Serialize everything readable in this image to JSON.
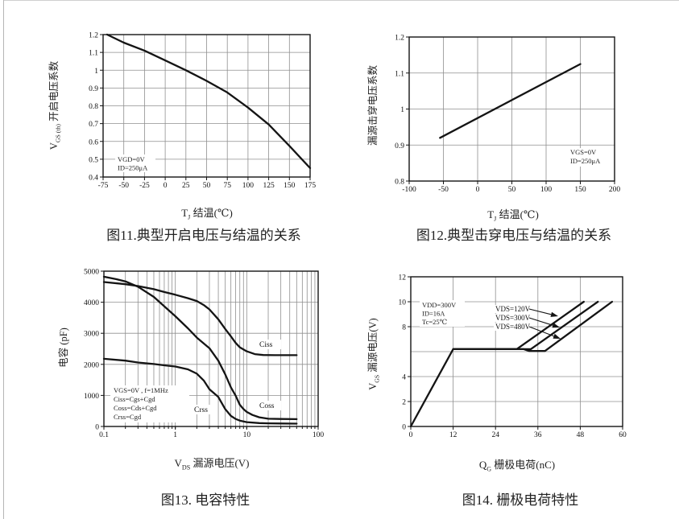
{
  "page": {
    "background": "#ffffff",
    "edge_color": "#b5b5b5",
    "ink_color": "#141414",
    "grid_color": "#8f8f8f"
  },
  "chart_data": [
    {
      "id": "fig11",
      "type": "line",
      "caption": "图11.典型开启电压与结温的关系",
      "xlabel": {
        "main": "T",
        "sub": "J",
        "rest": " 结温(℃)"
      },
      "ylabel": {
        "main": "V",
        "sub": "GS (th)",
        "rest": " 开启电压系数"
      },
      "x_scale": "linear",
      "x_range": [
        -75,
        175
      ],
      "y_range": [
        0.4,
        1.2
      ],
      "x_tick_values": [
        -75,
        -50,
        -25,
        0,
        25,
        50,
        75,
        100,
        125,
        150,
        175
      ],
      "x_tick_labels": [
        "-75",
        "-50",
        "-25",
        "0",
        "25",
        "50",
        "75",
        "100",
        "125",
        "150",
        "175"
      ],
      "y_tick_values": [
        0.4,
        0.5,
        0.6,
        0.7,
        0.8,
        0.9,
        1.0,
        1.1,
        1.2
      ],
      "y_tick_labels": [
        "0.4",
        "0.5",
        "0.6",
        "0.7",
        "0.8",
        "0.9",
        "1",
        "1.1",
        "1.2"
      ],
      "x_gridlines": [
        -50,
        -25,
        0,
        25,
        50,
        75,
        100,
        125,
        150
      ],
      "y_gridlines": [
        0.5,
        0.6,
        0.7,
        0.8,
        0.9,
        1.0,
        1.1
      ],
      "annotation": [
        "VGD=0V",
        "ID=250μA"
      ],
      "series": [
        {
          "name": "VGS(th)系数",
          "points": [
            [
              -70,
              1.2
            ],
            [
              -50,
              1.155
            ],
            [
              -25,
              1.11
            ],
            [
              0,
              1.055
            ],
            [
              25,
              1.0
            ],
            [
              50,
              0.94
            ],
            [
              75,
              0.875
            ],
            [
              100,
              0.79
            ],
            [
              125,
              0.695
            ],
            [
              150,
              0.575
            ],
            [
              175,
              0.45
            ]
          ]
        }
      ]
    },
    {
      "id": "fig12",
      "type": "line",
      "caption": "图12.典型击穿电压与结温的关系",
      "xlabel": {
        "main": "T",
        "sub": "J",
        "rest": " 结温(℃)"
      },
      "ylabel": {
        "main": "漏源击穿电压系数",
        "sub": "",
        "rest": ""
      },
      "x_scale": "linear",
      "x_range": [
        -100,
        200
      ],
      "y_range": [
        0.8,
        1.2
      ],
      "x_tick_values": [
        -100,
        -50,
        0,
        50,
        100,
        150,
        200
      ],
      "x_tick_labels": [
        "-100",
        "-50",
        "0",
        "50",
        "100",
        "150",
        "200"
      ],
      "y_tick_values": [
        0.8,
        0.9,
        1.0,
        1.1,
        1.2
      ],
      "y_tick_labels": [
        "0.8",
        "0.9",
        "1",
        "1.1",
        "1.2"
      ],
      "x_gridlines": [
        -50,
        0,
        50,
        100,
        150
      ],
      "y_gridlines": [
        0.9,
        1.0,
        1.1
      ],
      "annotation": [
        "VGS=0V",
        "ID=250μA"
      ],
      "series": [
        {
          "name": "击穿电压系数",
          "points": [
            [
              -55,
              0.92
            ],
            [
              150,
              1.125
            ]
          ]
        }
      ]
    },
    {
      "id": "fig13",
      "type": "line",
      "caption": "图13. 电容特性",
      "xlabel": {
        "main": "V",
        "sub": "DS",
        "rest": " 漏源电压(V)"
      },
      "ylabel": {
        "main": "电容 (pF)",
        "sub": "",
        "rest": ""
      },
      "x_scale": "log",
      "x_range": [
        0.1,
        100
      ],
      "y_range": [
        0,
        5000
      ],
      "x_tick_values": [
        0.1,
        1,
        10,
        100
      ],
      "x_tick_labels": [
        "0.1",
        "1",
        "10",
        "100"
      ],
      "y_tick_values": [
        0,
        1000,
        2000,
        3000,
        4000,
        5000
      ],
      "y_tick_labels": [
        "0",
        "1000",
        "2000",
        "3000",
        "4000",
        "5000"
      ],
      "x_gridlines": [
        1,
        10
      ],
      "y_gridlines": [
        1000,
        2000,
        3000,
        4000
      ],
      "annotation": [
        "VGS=0V , f=1MHz",
        "Ciss=Cgs+Cgd",
        "Coss=Cds+Cgd",
        "Crss=Cgd"
      ],
      "series": [
        {
          "name": "Ciss",
          "points": [
            [
              0.1,
              4650
            ],
            [
              0.2,
              4580
            ],
            [
              0.3,
              4520
            ],
            [
              0.5,
              4420
            ],
            [
              0.7,
              4330
            ],
            [
              1,
              4240
            ],
            [
              1.5,
              4130
            ],
            [
              2,
              4040
            ],
            [
              2.5,
              3910
            ],
            [
              3,
              3770
            ],
            [
              4,
              3450
            ],
            [
              5,
              3140
            ],
            [
              6,
              2900
            ],
            [
              7,
              2690
            ],
            [
              8,
              2550
            ],
            [
              10,
              2420
            ],
            [
              13,
              2330
            ],
            [
              17,
              2300
            ],
            [
              25,
              2295
            ],
            [
              50,
              2295
            ]
          ]
        },
        {
          "name": "Coss",
          "points": [
            [
              0.1,
              4820
            ],
            [
              0.15,
              4740
            ],
            [
              0.2,
              4670
            ],
            [
              0.3,
              4500
            ],
            [
              0.5,
              4170
            ],
            [
              0.7,
              3870
            ],
            [
              1,
              3550
            ],
            [
              1.5,
              3160
            ],
            [
              2,
              2860
            ],
            [
              2.5,
              2670
            ],
            [
              3,
              2520
            ],
            [
              4,
              2120
            ],
            [
              5,
              1680
            ],
            [
              6,
              1260
            ],
            [
              7,
              990
            ],
            [
              8,
              700
            ],
            [
              9,
              560
            ],
            [
              10,
              470
            ],
            [
              12,
              370
            ],
            [
              15,
              295
            ],
            [
              20,
              250
            ],
            [
              30,
              240
            ],
            [
              50,
              235
            ]
          ]
        },
        {
          "name": "Crss",
          "points": [
            [
              0.1,
              2180
            ],
            [
              0.2,
              2120
            ],
            [
              0.3,
              2060
            ],
            [
              0.5,
              2010
            ],
            [
              0.7,
              1970
            ],
            [
              1,
              1930
            ],
            [
              1.5,
              1840
            ],
            [
              2,
              1700
            ],
            [
              2.5,
              1480
            ],
            [
              3,
              1200
            ],
            [
              4,
              950
            ],
            [
              5,
              560
            ],
            [
              6,
              340
            ],
            [
              7,
              240
            ],
            [
              8,
              190
            ],
            [
              10,
              140
            ],
            [
              15,
              110
            ],
            [
              20,
              100
            ],
            [
              30,
              95
            ],
            [
              50,
              90
            ]
          ]
        }
      ]
    },
    {
      "id": "fig14",
      "type": "line",
      "caption": "图14. 栅极电荷特性",
      "xlabel": {
        "main": "Q",
        "sub": "G",
        "rest": " 栅极电荷(nC)"
      },
      "ylabel": {
        "main": "V",
        "sub": "GS",
        "rest": " 漏源电压(V)"
      },
      "x_scale": "linear",
      "x_range": [
        0,
        60
      ],
      "y_range": [
        0,
        12
      ],
      "x_tick_values": [
        0,
        12,
        24,
        36,
        48,
        60
      ],
      "x_tick_labels": [
        "0",
        "12",
        "24",
        "36",
        "48",
        "60"
      ],
      "y_tick_values": [
        0,
        2,
        4,
        8,
        10,
        12
      ],
      "y_tick_labels": [
        "0",
        "2",
        "4",
        "8",
        "10",
        "12"
      ],
      "x_gridlines": [
        12,
        24,
        36,
        48
      ],
      "y_gridlines": [
        2,
        4,
        6,
        8,
        10
      ],
      "annotation": [
        "VDD=300V",
        "ID=16A",
        "Tc=25℃"
      ],
      "series": [
        {
          "name": "VDS=120V",
          "points": [
            [
              0,
              0
            ],
            [
              12,
              6.2
            ],
            [
              30,
              6.2
            ],
            [
              49,
              10
            ]
          ]
        },
        {
          "name": "VDS=300V",
          "points": [
            [
              12,
              6.2
            ],
            [
              34,
              6.2
            ],
            [
              53,
              10
            ]
          ]
        },
        {
          "name": "VDS=480V",
          "points": [
            [
              12,
              6.2
            ],
            [
              32,
              6.2
            ],
            [
              33.5,
              6.05
            ],
            [
              38,
              6.05
            ],
            [
              57,
              10
            ]
          ]
        }
      ]
    }
  ]
}
